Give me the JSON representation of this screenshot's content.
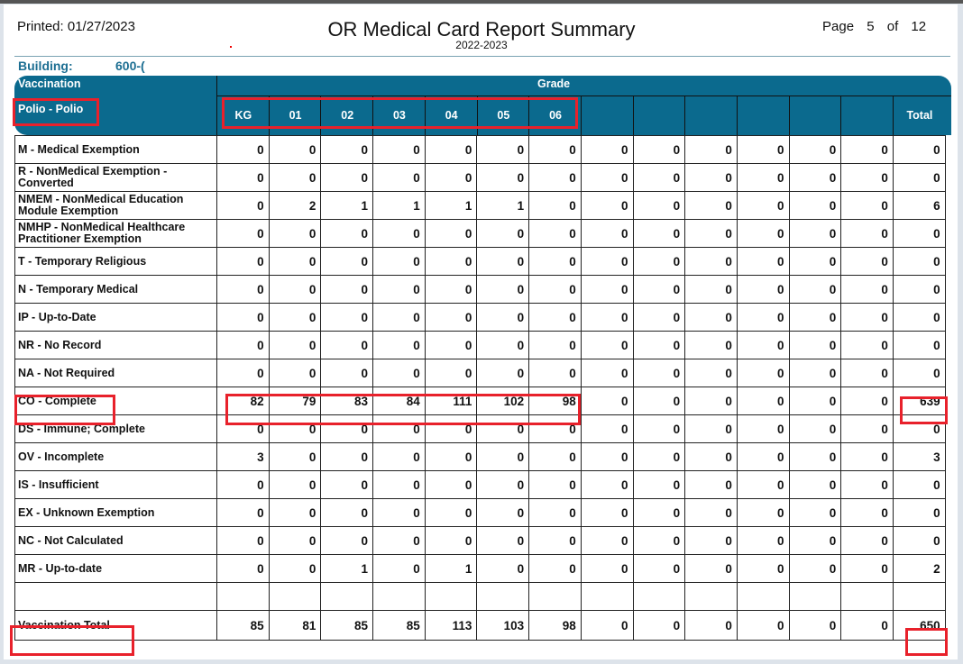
{
  "header": {
    "printed": "Printed: 01/27/2023",
    "title": "OR Medical Card Report Summary",
    "subtitle": "2022-2023",
    "page_label": "Page",
    "page_current": "5",
    "page_of": "of",
    "page_total": "12"
  },
  "building": {
    "label": "Building:",
    "value": "600-("
  },
  "table": {
    "vaccination_label": "Vaccination",
    "vaccine": "Polio - Polio",
    "grade_label": "Grade",
    "columns": [
      "KG",
      "01",
      "02",
      "03",
      "04",
      "05",
      "06",
      "",
      "",
      "",
      "",
      "",
      "",
      "Total"
    ],
    "rows": [
      {
        "label": "M - Medical Exemption",
        "values": [
          0,
          0,
          0,
          0,
          0,
          0,
          0,
          0,
          0,
          0,
          0,
          0,
          0,
          0
        ]
      },
      {
        "label": "R - NonMedical Exemption - Converted",
        "values": [
          0,
          0,
          0,
          0,
          0,
          0,
          0,
          0,
          0,
          0,
          0,
          0,
          0,
          0
        ]
      },
      {
        "label": "NMEM - NonMedical Education Module Exemption",
        "values": [
          0,
          2,
          1,
          1,
          1,
          1,
          0,
          0,
          0,
          0,
          0,
          0,
          0,
          6
        ]
      },
      {
        "label": "NMHP - NonMedical Healthcare Practitioner Exemption",
        "values": [
          0,
          0,
          0,
          0,
          0,
          0,
          0,
          0,
          0,
          0,
          0,
          0,
          0,
          0
        ]
      },
      {
        "label": "T - Temporary Religious",
        "values": [
          0,
          0,
          0,
          0,
          0,
          0,
          0,
          0,
          0,
          0,
          0,
          0,
          0,
          0
        ]
      },
      {
        "label": "N - Temporary Medical",
        "values": [
          0,
          0,
          0,
          0,
          0,
          0,
          0,
          0,
          0,
          0,
          0,
          0,
          0,
          0
        ]
      },
      {
        "label": "IP - Up-to-Date",
        "values": [
          0,
          0,
          0,
          0,
          0,
          0,
          0,
          0,
          0,
          0,
          0,
          0,
          0,
          0
        ]
      },
      {
        "label": "NR - No Record",
        "values": [
          0,
          0,
          0,
          0,
          0,
          0,
          0,
          0,
          0,
          0,
          0,
          0,
          0,
          0
        ]
      },
      {
        "label": "NA - Not Required",
        "values": [
          0,
          0,
          0,
          0,
          0,
          0,
          0,
          0,
          0,
          0,
          0,
          0,
          0,
          0
        ]
      },
      {
        "label": "CO - Complete",
        "values": [
          82,
          79,
          83,
          84,
          111,
          102,
          98,
          0,
          0,
          0,
          0,
          0,
          0,
          639
        ]
      },
      {
        "label": "DS - Immune; Complete",
        "values": [
          0,
          0,
          0,
          0,
          0,
          0,
          0,
          0,
          0,
          0,
          0,
          0,
          0,
          0
        ]
      },
      {
        "label": "OV - Incomplete",
        "values": [
          3,
          0,
          0,
          0,
          0,
          0,
          0,
          0,
          0,
          0,
          0,
          0,
          0,
          3
        ]
      },
      {
        "label": "IS - Insufficient",
        "values": [
          0,
          0,
          0,
          0,
          0,
          0,
          0,
          0,
          0,
          0,
          0,
          0,
          0,
          0
        ]
      },
      {
        "label": "EX - Unknown Exemption",
        "values": [
          0,
          0,
          0,
          0,
          0,
          0,
          0,
          0,
          0,
          0,
          0,
          0,
          0,
          0
        ]
      },
      {
        "label": "NC - Not Calculated",
        "values": [
          0,
          0,
          0,
          0,
          0,
          0,
          0,
          0,
          0,
          0,
          0,
          0,
          0,
          0
        ]
      },
      {
        "label": "MR - Up-to-date",
        "values": [
          0,
          0,
          1,
          0,
          1,
          0,
          0,
          0,
          0,
          0,
          0,
          0,
          0,
          2
        ]
      }
    ],
    "total_row": {
      "label": "Vaccination Total",
      "values": [
        85,
        81,
        85,
        85,
        113,
        103,
        98,
        0,
        0,
        0,
        0,
        0,
        0,
        650
      ]
    }
  },
  "colors": {
    "header_bg": "#0b6a8e",
    "highlight": "#e8212b",
    "building_text": "#1c6e92"
  }
}
